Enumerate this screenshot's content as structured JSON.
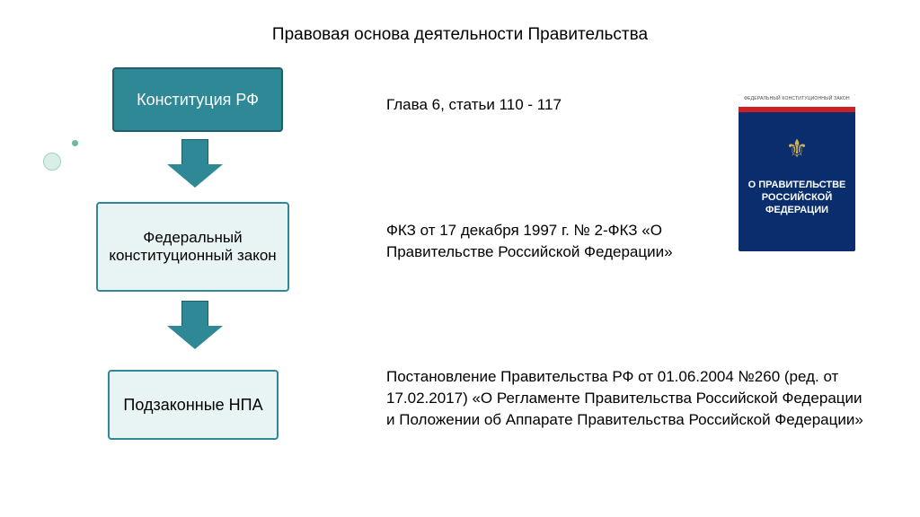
{
  "title": "Правовая основа деятельности Правительства",
  "boxes": {
    "b1": {
      "label": "Конституция РФ",
      "fill": "#2f8896",
      "stroke": "#1e5f6a"
    },
    "b2": {
      "label": "Федеральный конституционный закон",
      "fill": "#e8f4f3",
      "stroke": "#2f8896"
    },
    "b3": {
      "label": "Подзаконные НПА",
      "fill": "#e8f4f3",
      "stroke": "#2f8896"
    }
  },
  "descriptions": {
    "d1": "Глава 6, статьи 110 - 117",
    "d2": "ФКЗ от 17 декабря 1997 г. № 2-ФКЗ «О Правительстве Российской Федерации»",
    "d3": "Постановление Правительства РФ от 01.06.2004 №260 (ред. от 17.02.2017) «О Регламенте Правительства Российской Федерации и Положении об Аппарате Правительства Российской Федерации»"
  },
  "arrows": {
    "fill": "#2f8896",
    "stroke": "#1e5f6a",
    "rect_w": 30,
    "rect_h": 28,
    "head_w": 62,
    "head_h": 26
  },
  "book": {
    "bg": "#0a2d6e",
    "top_label": "ФЕДЕРАЛЬНЫЙ КОНСТИТУЦИОННЫЙ ЗАКОН",
    "title": "О ПРАВИТЕЛЬСТВЕ РОССИЙСКОЙ ФЕДЕРАЦИИ",
    "coat_glyph": "⚜"
  },
  "decor": {
    "bullet_bg": "#d7efe6",
    "bullet_border": "#9fd1c0",
    "dot_bg": "#6fb9a2"
  }
}
